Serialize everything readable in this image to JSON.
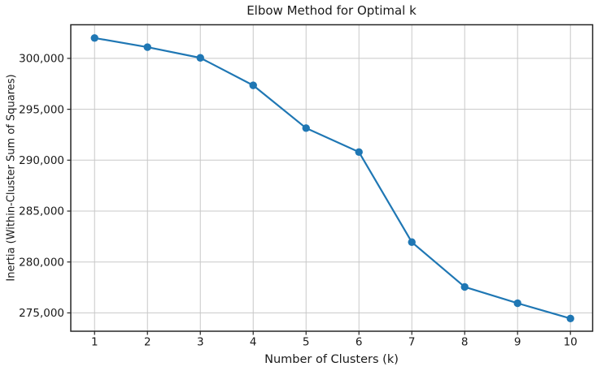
{
  "chart_data": {
    "type": "line",
    "title": "Elbow Method for Optimal k",
    "xlabel": "Number of Clusters (k)",
    "ylabel": "Inertia (Within-Cluster Sum of Squares)",
    "x": [
      1,
      2,
      3,
      4,
      5,
      6,
      7,
      8,
      9,
      10
    ],
    "y": [
      302000,
      301100,
      300050,
      297350,
      293150,
      290800,
      281950,
      277550,
      275950,
      274450
    ],
    "xlim": [
      0.55,
      10.42
    ],
    "ylim": [
      273200,
      303300
    ],
    "x_tick_labels": [
      "1",
      "2",
      "3",
      "4",
      "5",
      "6",
      "7",
      "8",
      "9",
      "10"
    ],
    "y_ticks": [
      275000,
      280000,
      285000,
      290000,
      295000,
      300000
    ],
    "y_tick_labels": [
      "275,000",
      "280,000",
      "285,000",
      "290,000",
      "295,000",
      "300,000"
    ],
    "grid": true,
    "legend": "none",
    "marker": "circle",
    "colors": {
      "line": "#1f77b4",
      "marker": "#1f77b4",
      "grid": "#c8c8c8",
      "spine": "#262626",
      "text": "#1a1a1a"
    }
  }
}
